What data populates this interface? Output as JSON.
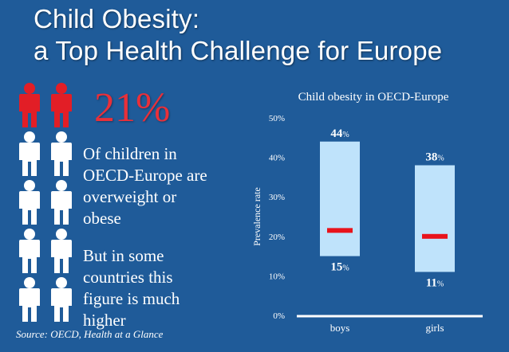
{
  "header": {
    "title_line1": "Child Obesity:",
    "title_line2": "a Top Health Challenge for Europe"
  },
  "stat": {
    "value": "21%",
    "text_lines": [
      "Of children in",
      "OECD-Europe are",
      "overweight or",
      "obese"
    ],
    "note_lines": [
      "But in some",
      "countries this",
      "figure is much",
      "higher"
    ]
  },
  "source": "Source: OECD, Health at a Glance",
  "icons": {
    "people": "person-icon",
    "highlight_color": "#e21e26",
    "base_color": "#ffffff",
    "rows": [
      [
        "red",
        "red"
      ],
      [
        "white",
        "white"
      ],
      [
        "white",
        "white"
      ],
      [
        "white",
        "white"
      ],
      [
        "white",
        "white"
      ]
    ]
  },
  "colors": {
    "background": "#1f5b99",
    "bar_fill": "#bfe3fb",
    "marker": "#e8131b",
    "accent_text": "#e8303a"
  },
  "chart_data": {
    "type": "bar",
    "title": "Child obesity in OECD-Europe",
    "ylabel": "Prevalence rate",
    "xlabel": "",
    "ylim": [
      0,
      50
    ],
    "yticks": [
      "0%",
      "10%",
      "20%",
      "30%",
      "40%",
      "50%"
    ],
    "categories": [
      "boys",
      "girls"
    ],
    "ranges": [
      {
        "category": "boys",
        "low": 15,
        "high": 44,
        "average": 21.5,
        "low_label": "15",
        "high_label": "44"
      },
      {
        "category": "girls",
        "low": 11,
        "high": 38,
        "average": 20,
        "low_label": "11",
        "high_label": "38"
      }
    ],
    "unit_suffix": "%",
    "grid": false
  }
}
